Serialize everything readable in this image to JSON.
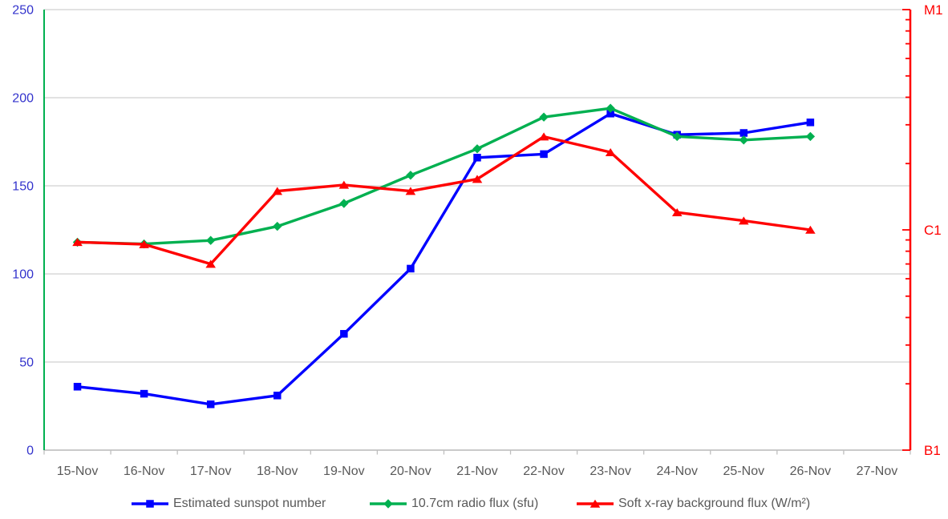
{
  "chart_data": {
    "type": "line",
    "title": "",
    "categories": [
      "15-Nov",
      "16-Nov",
      "17-Nov",
      "18-Nov",
      "19-Nov",
      "20-Nov",
      "21-Nov",
      "22-Nov",
      "23-Nov",
      "24-Nov",
      "25-Nov",
      "26-Nov",
      "27-Nov"
    ],
    "series": [
      {
        "name": "Estimated sunspot number",
        "color": "#0000FF",
        "marker": "square",
        "axis": "left",
        "values": [
          36,
          32,
          26,
          31,
          66,
          103,
          166,
          168,
          191,
          179,
          180,
          186
        ]
      },
      {
        "name": "10.7cm radio flux (sfu)",
        "color": "#00B050",
        "marker": "diamond",
        "axis": "left",
        "values": [
          118,
          117,
          119,
          127,
          140,
          156,
          171,
          189,
          194,
          178,
          176,
          178
        ]
      },
      {
        "name": "Soft x-ray background flux (W/m²)",
        "color": "#FF0000",
        "marker": "triangle",
        "axis": "right",
        "values": [
          8.8e-07,
          8.6e-07,
          7e-07,
          1.5e-06,
          1.6e-06,
          1.5e-06,
          1.7e-06,
          2.65e-06,
          2.25e-06,
          1.2e-06,
          1.1e-06,
          1e-06
        ]
      }
    ],
    "left_axis": {
      "ticks": [
        0,
        50,
        100,
        150,
        200,
        250
      ],
      "range": [
        0,
        250
      ],
      "label_color": "#3333CC",
      "line_color": "#00B050"
    },
    "right_axis": {
      "scale": "log",
      "range": [
        1e-07,
        1e-05
      ],
      "labels": [
        {
          "text": "M1",
          "value": 1e-05
        },
        {
          "text": "C1",
          "value": 1e-06
        },
        {
          "text": "B1",
          "value": 1e-07
        }
      ],
      "minor_ticks_per_decade": [
        2,
        3,
        4,
        5,
        6,
        7,
        8,
        9
      ],
      "label_color": "#FF0000",
      "line_color": "#FF0000"
    },
    "x_axis": {
      "label_color": "#595959",
      "line_color": "#BFBFBF"
    },
    "grid": {
      "on": true,
      "color": "#D9D9D9"
    },
    "legend": {
      "position": "bottom",
      "text_color": "#595959"
    }
  }
}
